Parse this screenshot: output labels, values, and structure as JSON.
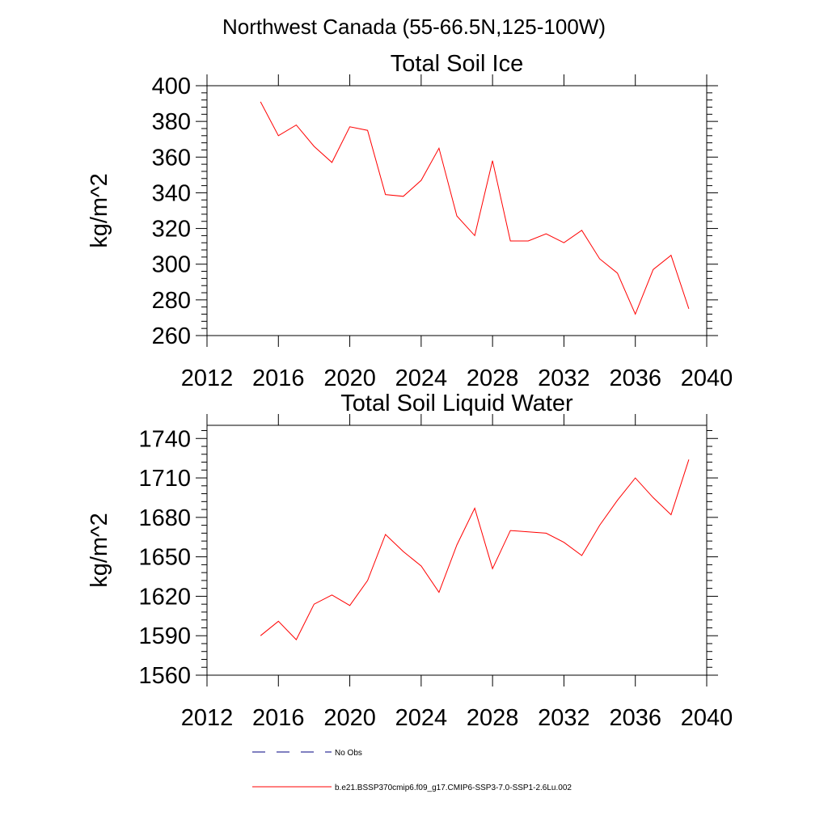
{
  "figure": {
    "suptitle": "Northwest Canada (55-66.5N,125-100W)"
  },
  "colors": {
    "series": "#ff0000",
    "obs": "#000080",
    "axis": "#000000"
  },
  "legend": {
    "placement": "bottom",
    "entries": [
      {
        "label": "No Obs",
        "style": "dashed",
        "color": "#000080"
      },
      {
        "label": "b.e21.BSSP370cmip6.f09_g17.CMIP6-SSP3-7.0-SSP1-2.6Lu.002",
        "style": "solid",
        "color": "#ff0000"
      }
    ]
  },
  "chart_data": [
    {
      "type": "line",
      "title": "Total Soil Ice",
      "xlabel": "",
      "ylabel": "kg/m^2",
      "xlim": [
        2012,
        2040
      ],
      "ylim": [
        260,
        400
      ],
      "xticks": [
        2012,
        2016,
        2020,
        2024,
        2028,
        2032,
        2036,
        2040
      ],
      "yticks": [
        260,
        280,
        300,
        320,
        340,
        360,
        380,
        400
      ],
      "grid": false,
      "x": [
        2015,
        2016,
        2017,
        2018,
        2019,
        2020,
        2021,
        2022,
        2023,
        2024,
        2025,
        2026,
        2027,
        2028,
        2029,
        2030,
        2031,
        2032,
        2033,
        2034,
        2035,
        2036,
        2037,
        2038,
        2039
      ],
      "series": [
        {
          "values": [
            391,
            372,
            378,
            366,
            357,
            377,
            375,
            339,
            338,
            347,
            365,
            327,
            316,
            358,
            313,
            313,
            317,
            312,
            319,
            303,
            295,
            272,
            297,
            305,
            275
          ]
        }
      ]
    },
    {
      "type": "line",
      "title": "Total Soil Liquid Water",
      "xlabel": "",
      "ylabel": "kg/m^2",
      "xlim": [
        2012,
        2040
      ],
      "ylim": [
        1560,
        1750
      ],
      "xticks": [
        2012,
        2016,
        2020,
        2024,
        2028,
        2032,
        2036,
        2040
      ],
      "yticks": [
        1560,
        1590,
        1620,
        1650,
        1680,
        1710,
        1740
      ],
      "grid": false,
      "x": [
        2015,
        2016,
        2017,
        2018,
        2019,
        2020,
        2021,
        2022,
        2023,
        2024,
        2025,
        2026,
        2027,
        2028,
        2029,
        2030,
        2031,
        2032,
        2033,
        2034,
        2035,
        2036,
        2037,
        2038,
        2039
      ],
      "series": [
        {
          "values": [
            1590,
            1601,
            1587,
            1614,
            1621,
            1613,
            1632,
            1667,
            1654,
            1643,
            1623,
            1659,
            1687,
            1641,
            1670,
            1669,
            1668,
            1661,
            1651,
            1674,
            1693,
            1710,
            1695,
            1682,
            1724
          ]
        }
      ]
    }
  ]
}
